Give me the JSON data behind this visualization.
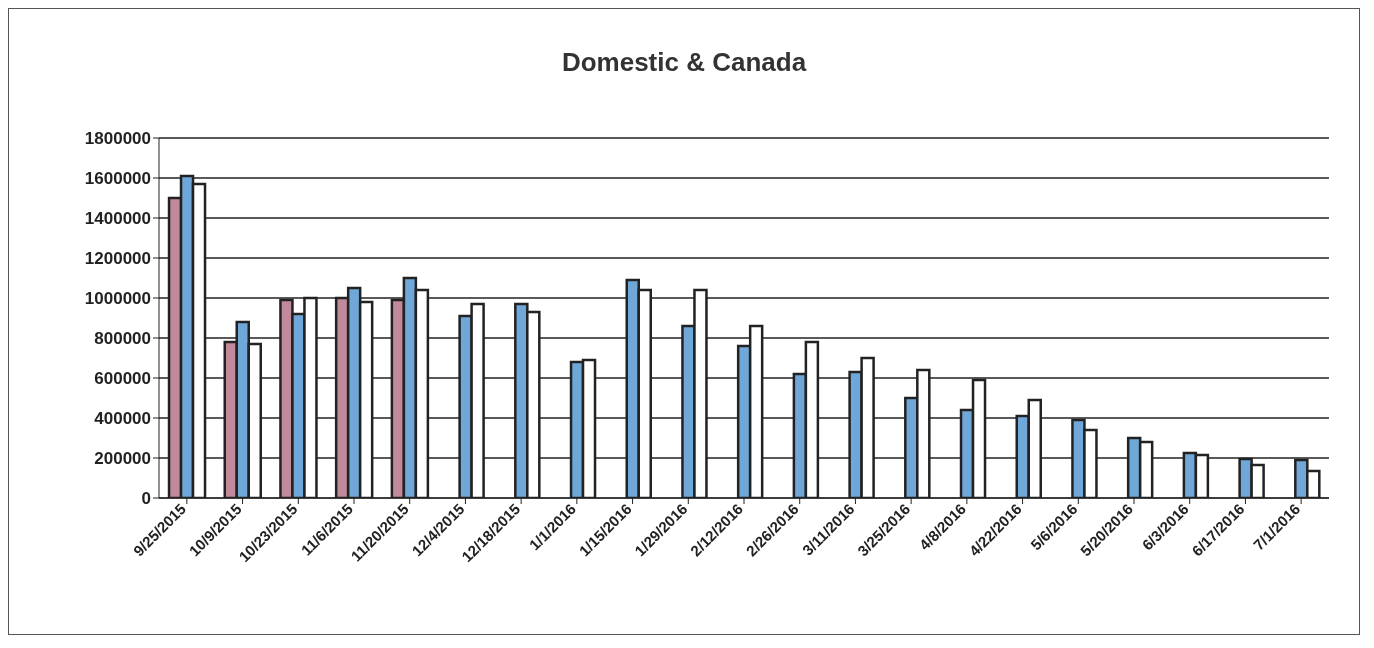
{
  "chart_data": {
    "type": "bar",
    "title": "Domestic & Canada",
    "categories": [
      "9/25/2015",
      "10/9/2015",
      "10/23/2015",
      "11/6/2015",
      "11/20/2015",
      "12/4/2015",
      "12/18/2015",
      "1/1/2016",
      "1/15/2016",
      "1/29/2016",
      "2/12/2016",
      "2/26/2016",
      "3/11/2016",
      "3/25/2016",
      "4/8/2016",
      "4/22/2016",
      "5/6/2016",
      "5/20/2016",
      "6/3/2016",
      "6/17/2016",
      "7/1/2016"
    ],
    "series": [
      {
        "color": "#c08a9a",
        "values": [
          1500000,
          780000,
          990000,
          1000000,
          990000,
          null,
          null,
          null,
          null,
          null,
          null,
          null,
          null,
          null,
          null,
          null,
          null,
          null,
          null,
          null,
          null
        ]
      },
      {
        "color": "#6fa8d8",
        "values": [
          1610000,
          880000,
          920000,
          1050000,
          1100000,
          910000,
          970000,
          680000,
          1090000,
          860000,
          760000,
          620000,
          630000,
          500000,
          440000,
          410000,
          390000,
          300000,
          225000,
          195000,
          190000
        ]
      },
      {
        "color": "#ffffff",
        "values": [
          1570000,
          770000,
          1000000,
          980000,
          1040000,
          970000,
          930000,
          690000,
          1040000,
          1040000,
          860000,
          780000,
          700000,
          640000,
          590000,
          490000,
          340000,
          280000,
          215000,
          165000,
          135000
        ]
      }
    ],
    "ylim": [
      0,
      1800000
    ],
    "yticks": [
      0,
      200000,
      400000,
      600000,
      800000,
      1000000,
      1200000,
      1400000,
      1600000,
      1800000
    ],
    "grid": "y",
    "legend": false
  }
}
